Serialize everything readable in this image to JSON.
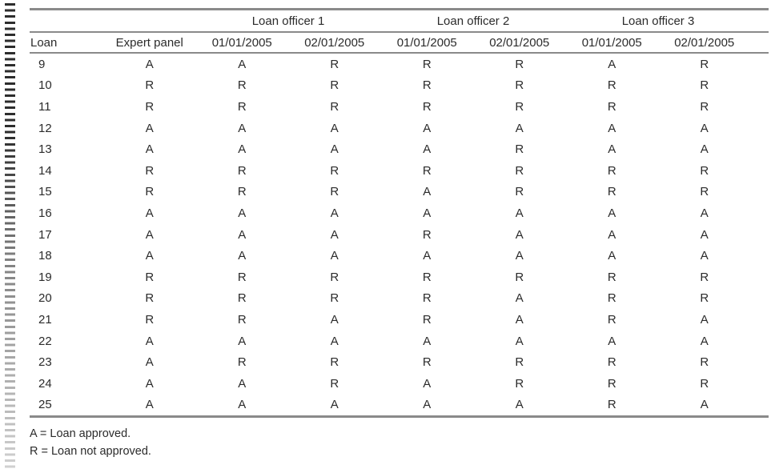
{
  "table": {
    "officer_groups": [
      "Loan officer 1",
      "Loan officer 2",
      "Loan officer 3"
    ],
    "columns": [
      "Loan",
      "Expert panel",
      "01/01/2005",
      "02/01/2005",
      "01/01/2005",
      "02/01/2005",
      "01/01/2005",
      "02/01/2005"
    ],
    "rows": [
      {
        "loan": "9",
        "values": [
          "A",
          "A",
          "R",
          "R",
          "R",
          "A",
          "R"
        ]
      },
      {
        "loan": "10",
        "values": [
          "R",
          "R",
          "R",
          "R",
          "R",
          "R",
          "R"
        ]
      },
      {
        "loan": "11",
        "values": [
          "R",
          "R",
          "R",
          "R",
          "R",
          "R",
          "R"
        ]
      },
      {
        "loan": "12",
        "values": [
          "A",
          "A",
          "A",
          "A",
          "A",
          "A",
          "A"
        ]
      },
      {
        "loan": "13",
        "values": [
          "A",
          "A",
          "A",
          "A",
          "R",
          "A",
          "A"
        ]
      },
      {
        "loan": "14",
        "values": [
          "R",
          "R",
          "R",
          "R",
          "R",
          "R",
          "R"
        ]
      },
      {
        "loan": "15",
        "values": [
          "R",
          "R",
          "R",
          "A",
          "R",
          "R",
          "R"
        ]
      },
      {
        "loan": "16",
        "values": [
          "A",
          "A",
          "A",
          "A",
          "A",
          "A",
          "A"
        ]
      },
      {
        "loan": "17",
        "values": [
          "A",
          "A",
          "A",
          "R",
          "A",
          "A",
          "A"
        ]
      },
      {
        "loan": "18",
        "values": [
          "A",
          "A",
          "A",
          "A",
          "A",
          "A",
          "A"
        ]
      },
      {
        "loan": "19",
        "values": [
          "R",
          "R",
          "R",
          "R",
          "R",
          "R",
          "R"
        ]
      },
      {
        "loan": "20",
        "values": [
          "R",
          "R",
          "R",
          "R",
          "A",
          "R",
          "R"
        ]
      },
      {
        "loan": "21",
        "values": [
          "R",
          "R",
          "A",
          "R",
          "A",
          "R",
          "A"
        ]
      },
      {
        "loan": "22",
        "values": [
          "A",
          "A",
          "A",
          "A",
          "A",
          "A",
          "A"
        ]
      },
      {
        "loan": "23",
        "values": [
          "A",
          "R",
          "R",
          "R",
          "R",
          "R",
          "R"
        ]
      },
      {
        "loan": "24",
        "values": [
          "A",
          "A",
          "R",
          "A",
          "R",
          "R",
          "R"
        ]
      },
      {
        "loan": "25",
        "values": [
          "A",
          "A",
          "A",
          "A",
          "A",
          "R",
          "A"
        ]
      }
    ],
    "footnotes": [
      "A = Loan approved.",
      "R = Loan not approved."
    ],
    "legend": {
      "A": "Loan approved.",
      "R": "Loan not approved."
    }
  },
  "colors": {
    "rule_gray": "#8a8a8a",
    "text": "#2b2b2b",
    "background": "#ffffff"
  }
}
